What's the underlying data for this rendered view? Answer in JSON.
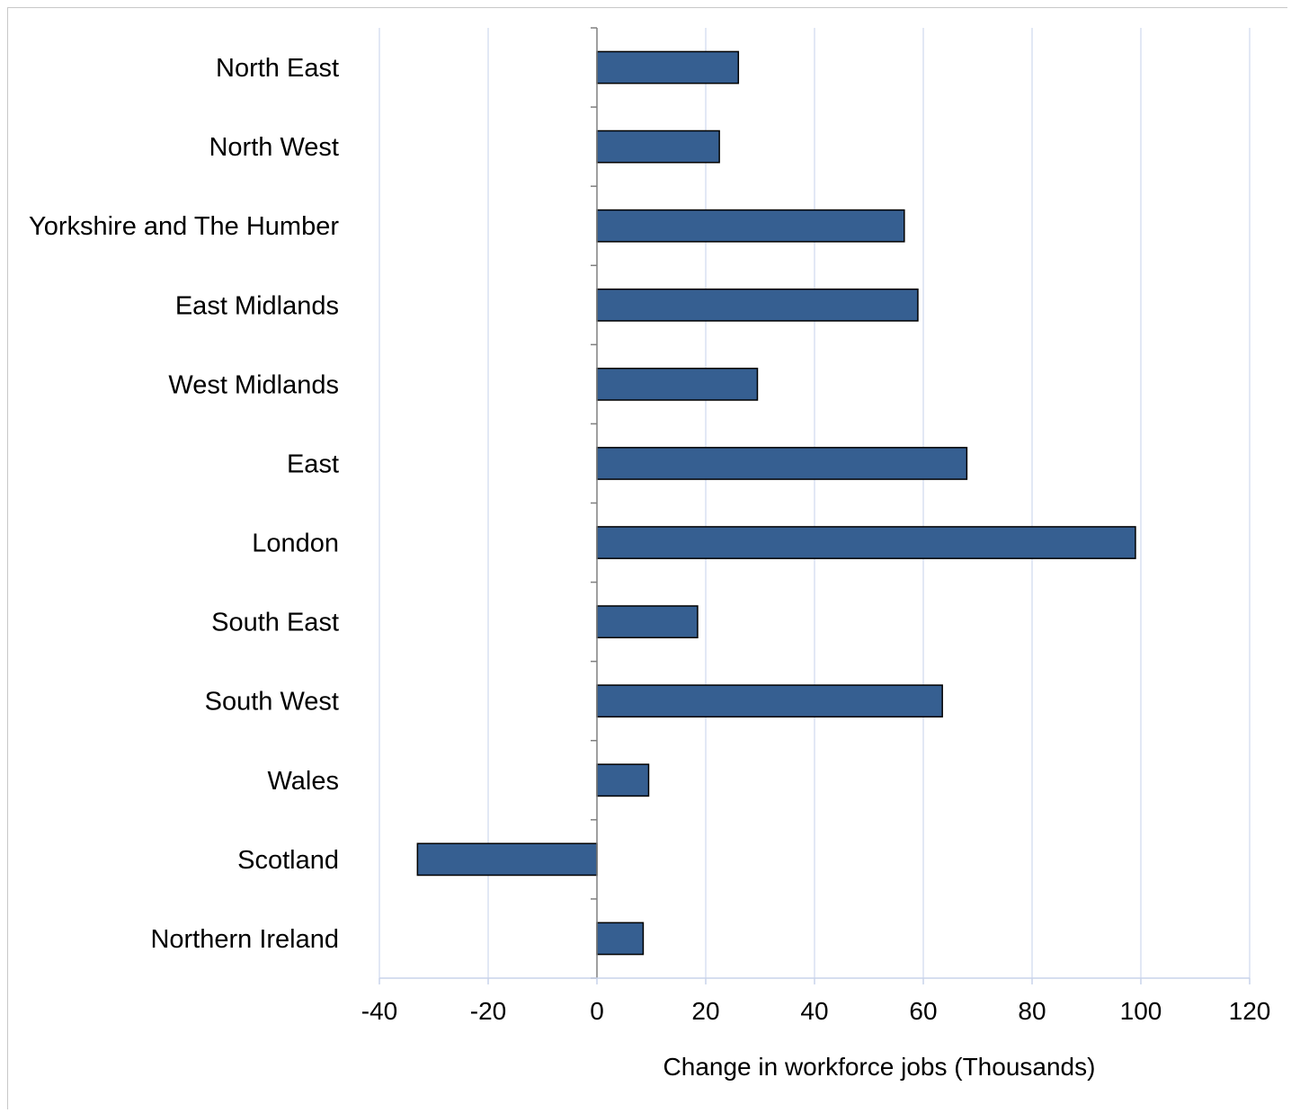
{
  "chart_data": {
    "type": "bar",
    "orientation": "horizontal",
    "categories": [
      "North East",
      "North West",
      "Yorkshire and The Humber",
      "East Midlands",
      "West Midlands",
      "East",
      "London",
      "South East",
      "South West",
      "Wales",
      "Scotland",
      "Northern Ireland"
    ],
    "values": [
      26,
      22.5,
      56.5,
      59,
      29.5,
      68,
      99,
      18.5,
      63.5,
      9.5,
      -33,
      8.5
    ],
    "title": "",
    "xlabel": "Change in workforce jobs (Thousands)",
    "ylabel": "",
    "xlim": [
      -40,
      120
    ],
    "xticks": [
      -40,
      -20,
      0,
      20,
      40,
      60,
      80,
      100,
      120
    ],
    "grid": "vertical",
    "legend": "none",
    "bar_color": "#365f91",
    "bar_edge_color": "#000000",
    "grid_color": "#d9e1f2"
  }
}
